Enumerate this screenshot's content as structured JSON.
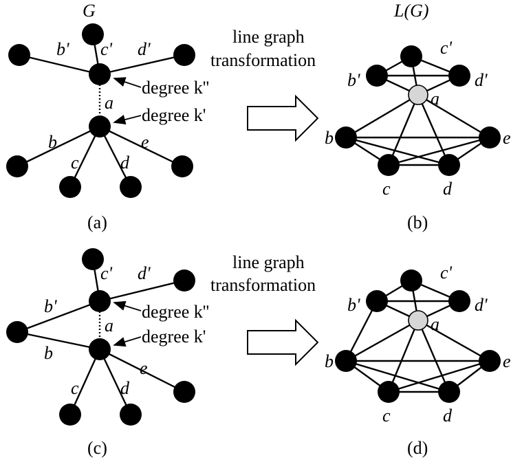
{
  "figure": {
    "top_left_title": "G",
    "top_right_title": "L(G)",
    "transform_text_line1": "line graph",
    "transform_text_line2": "transformation",
    "degree_upper": "degree k''",
    "degree_lower": "degree k'",
    "panel_labels": [
      "(a)",
      "(b)",
      "(c)",
      "(d)"
    ],
    "edge_labels": {
      "a": "a",
      "b": "b",
      "c": "c",
      "d": "d",
      "e": "e",
      "b_prime": "b'",
      "c_prime": "c'",
      "d_prime": "d'"
    }
  }
}
